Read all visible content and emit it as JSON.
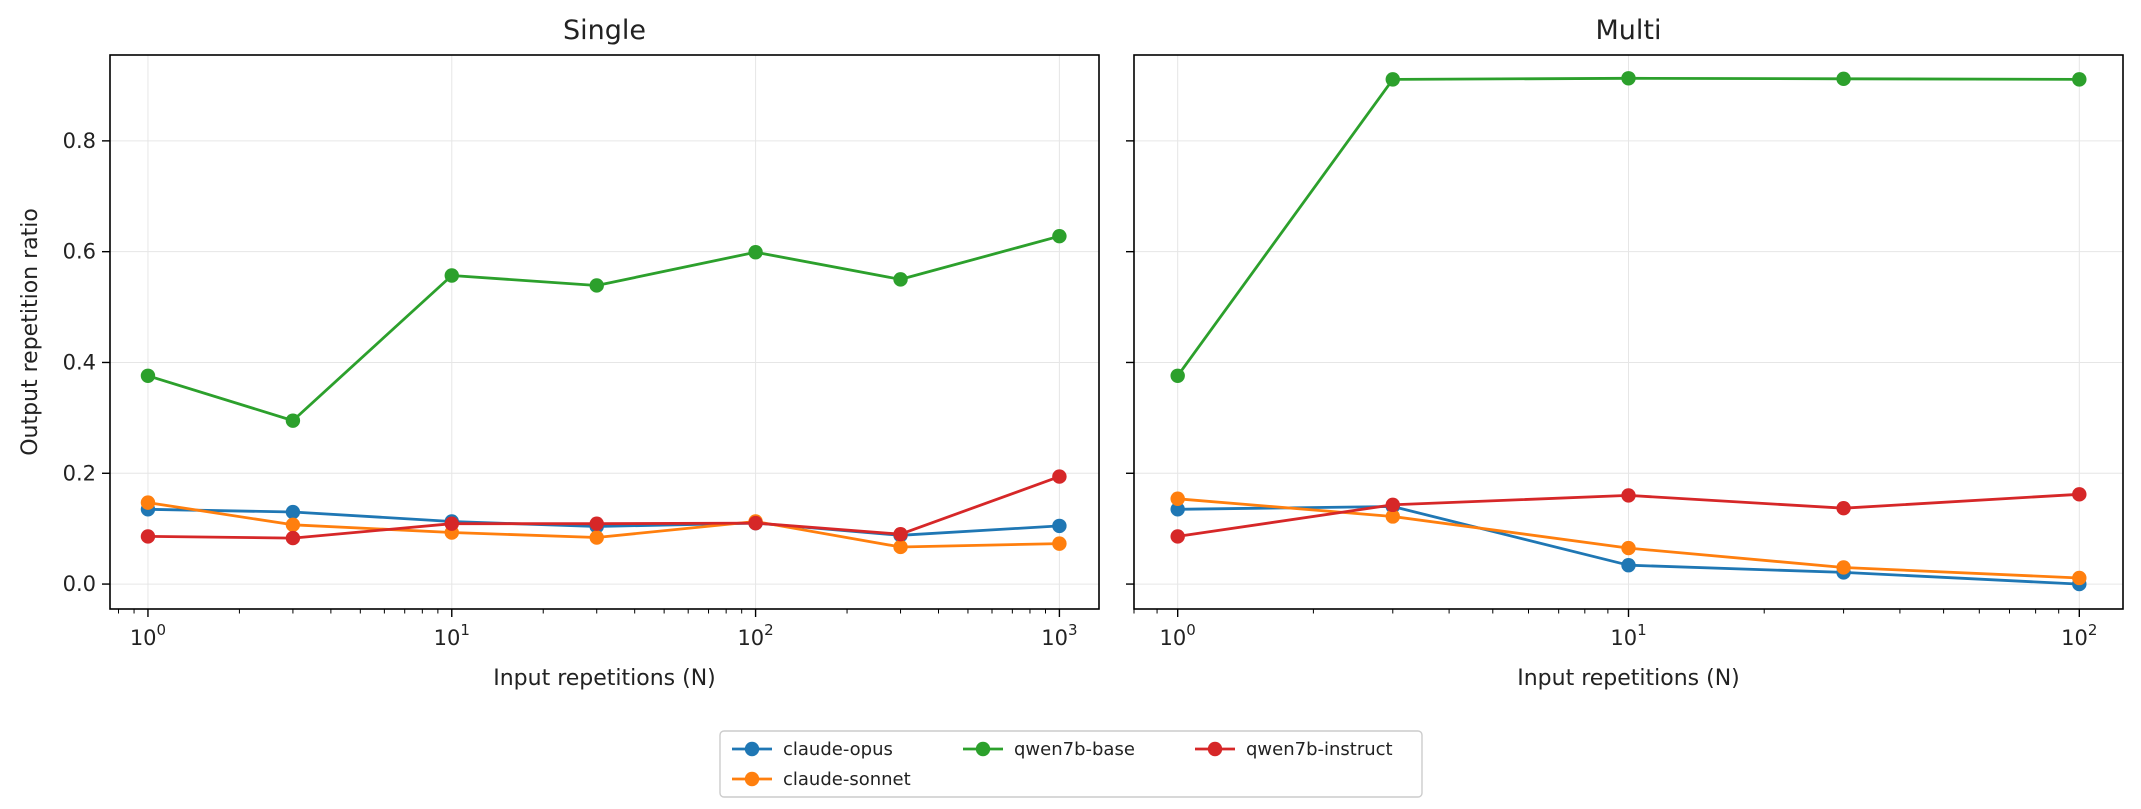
{
  "figure": {
    "ylabel": "Output repetition ratio",
    "legend": {
      "placement": "bottom-center",
      "entries": [
        {
          "name": "claude-opus",
          "color": "#1f77b4"
        },
        {
          "name": "claude-sonnet",
          "color": "#ff7f0e"
        },
        {
          "name": "qwen7b-base",
          "color": "#2ca02c"
        },
        {
          "name": "qwen7b-instruct",
          "color": "#d62728"
        }
      ]
    }
  },
  "chart_data": [
    {
      "type": "line",
      "title": "Single",
      "xlabel": "Input repetitions (N)",
      "ylabel": "Output repetition ratio",
      "xscale": "log",
      "xlim": [
        0.75,
        1350
      ],
      "ylim": [
        -0.045,
        0.955
      ],
      "grid": true,
      "x_ticks": [
        {
          "value": 1,
          "base": "10",
          "exp": "0"
        },
        {
          "value": 10,
          "base": "10",
          "exp": "1"
        },
        {
          "value": 100,
          "base": "10",
          "exp": "2"
        },
        {
          "value": 1000,
          "base": "10",
          "exp": "3"
        }
      ],
      "y_ticks": [
        {
          "value": 0.0,
          "label": "0.0"
        },
        {
          "value": 0.2,
          "label": "0.2"
        },
        {
          "value": 0.4,
          "label": "0.4"
        },
        {
          "value": 0.6,
          "label": "0.6"
        },
        {
          "value": 0.8,
          "label": "0.8"
        }
      ],
      "x": [
        1,
        3,
        10,
        30,
        100,
        300,
        1000
      ],
      "series": [
        {
          "name": "claude-opus",
          "color": "#1f77b4",
          "values": [
            0.135,
            0.13,
            0.113,
            0.104,
            0.11,
            0.088,
            0.105
          ]
        },
        {
          "name": "claude-sonnet",
          "color": "#ff7f0e",
          "values": [
            0.147,
            0.107,
            0.093,
            0.084,
            0.113,
            0.067,
            0.073
          ]
        },
        {
          "name": "qwen7b-base",
          "color": "#2ca02c",
          "values": [
            0.376,
            0.295,
            0.557,
            0.539,
            0.599,
            0.55,
            0.628
          ]
        },
        {
          "name": "qwen7b-instruct",
          "color": "#d62728",
          "values": [
            0.086,
            0.083,
            0.109,
            0.109,
            0.11,
            0.09,
            0.194
          ]
        }
      ]
    },
    {
      "type": "line",
      "title": "Multi",
      "xlabel": "Input repetitions (N)",
      "xscale": "log",
      "xlim": [
        0.8,
        125
      ],
      "ylim": [
        -0.045,
        0.955
      ],
      "grid": true,
      "x_ticks": [
        {
          "value": 1,
          "base": "10",
          "exp": "0"
        },
        {
          "value": 10,
          "base": "10",
          "exp": "1"
        },
        {
          "value": 100,
          "base": "10",
          "exp": "2"
        }
      ],
      "y_ticks": [
        {
          "value": 0.0,
          "label": ""
        },
        {
          "value": 0.2,
          "label": ""
        },
        {
          "value": 0.4,
          "label": ""
        },
        {
          "value": 0.6,
          "label": ""
        },
        {
          "value": 0.8,
          "label": ""
        }
      ],
      "x": [
        1,
        3,
        10,
        30,
        100
      ],
      "series": [
        {
          "name": "claude-opus",
          "color": "#1f77b4",
          "values": [
            0.135,
            0.14,
            0.034,
            0.021,
            0.0
          ]
        },
        {
          "name": "claude-sonnet",
          "color": "#ff7f0e",
          "values": [
            0.154,
            0.122,
            0.065,
            0.03,
            0.011
          ]
        },
        {
          "name": "qwen7b-base",
          "color": "#2ca02c",
          "values": [
            0.376,
            0.911,
            0.913,
            0.912,
            0.911
          ]
        },
        {
          "name": "qwen7b-instruct",
          "color": "#d62728",
          "values": [
            0.086,
            0.143,
            0.16,
            0.137,
            0.162
          ]
        }
      ]
    }
  ]
}
